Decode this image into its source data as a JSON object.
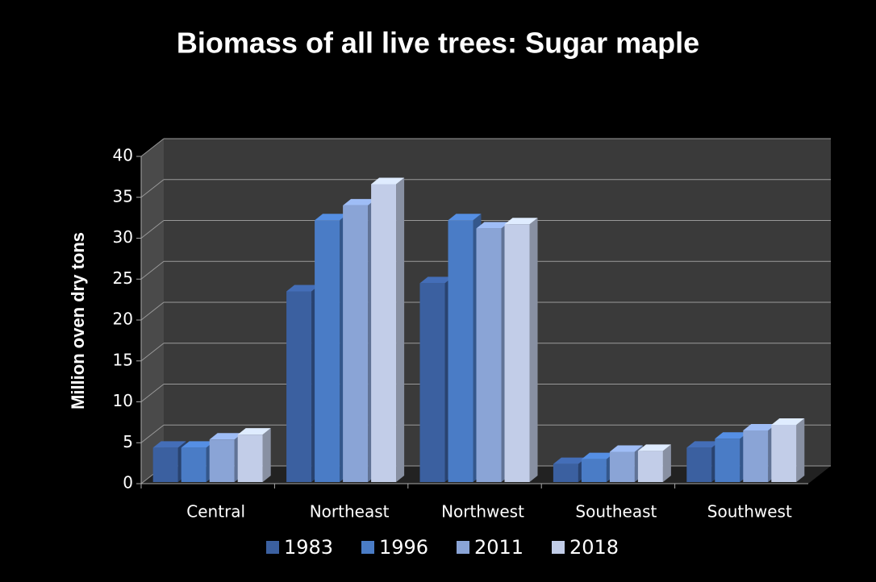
{
  "chart_data": {
    "type": "bar3d",
    "title": "Biomass of all live trees:  Sugar maple",
    "y_label": "Million oven dry tons",
    "categories": [
      "Central",
      "Northeast",
      "Northwest",
      "Southeast",
      "Southwest"
    ],
    "series": [
      {
        "name": "1983",
        "color": "#3b60a0",
        "values": [
          4.2,
          23.3,
          24.3,
          2.2,
          4.2
        ]
      },
      {
        "name": "1996",
        "color": "#4a7cc6",
        "values": [
          4.2,
          32,
          32,
          2.8,
          5.3
        ]
      },
      {
        "name": "2011",
        "color": "#8aa4d6",
        "values": [
          5.2,
          33.8,
          31,
          3.7,
          6.3
        ]
      },
      {
        "name": "2018",
        "color": "#c2cde8",
        "values": [
          5.8,
          36.4,
          31.5,
          3.8,
          7.0
        ]
      }
    ],
    "ylim": [
      0,
      40
    ],
    "yticks": [
      0,
      5,
      10,
      15,
      20,
      25,
      30,
      35,
      40
    ],
    "grid": true
  }
}
